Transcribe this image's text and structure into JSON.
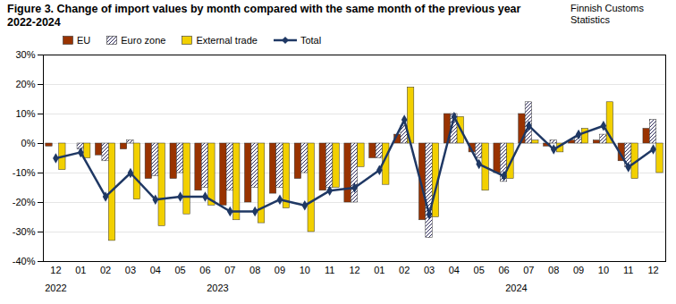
{
  "chart_data": {
    "type": "bar",
    "title": "Figure 3. Change of import values by month compared with the same month of the previous year 2022-2024",
    "source": "Finnish Customs Statistics",
    "categories": [
      "12",
      "01",
      "02",
      "03",
      "04",
      "05",
      "06",
      "07",
      "08",
      "09",
      "10",
      "11",
      "12",
      "01",
      "02",
      "03",
      "04",
      "05",
      "06",
      "07",
      "08",
      "09",
      "10",
      "11",
      "12"
    ],
    "category_groups": [
      "2022",
      "2023",
      "2023",
      "2023",
      "2023",
      "2023",
      "2023",
      "2023",
      "2023",
      "2023",
      "2023",
      "2023",
      "2023",
      "2024",
      "2024",
      "2024",
      "2024",
      "2024",
      "2024",
      "2024",
      "2024",
      "2024",
      "2024",
      "2024",
      "2024"
    ],
    "series": [
      {
        "name": "EU",
        "type": "bar",
        "color": "#993300",
        "values": [
          -1,
          0,
          -4,
          -2,
          -12,
          -12,
          -16,
          -21,
          -20,
          -17,
          -12,
          -16,
          -20,
          -5,
          3,
          -26,
          10,
          -3,
          -10,
          10,
          -1,
          1,
          1,
          -6,
          5
        ]
      },
      {
        "name": "Euro zone",
        "type": "bar",
        "color": "#2e2b5c",
        "marker": "hatch",
        "values": [
          0,
          -2,
          -6,
          1,
          -11,
          -10,
          -15,
          -16,
          -15,
          -15,
          -10,
          -15,
          -20,
          -5,
          6,
          -32,
          10,
          -5,
          -13,
          14,
          1,
          2,
          3,
          -8,
          8
        ]
      },
      {
        "name": "External trade",
        "type": "bar",
        "color": "#f2d000",
        "values": [
          -9,
          -5,
          -33,
          -19,
          -28,
          -24,
          -21,
          -26,
          -27,
          -22,
          -30,
          -15,
          -8,
          -14,
          19,
          -25,
          9,
          -16,
          -12,
          1,
          -3,
          5,
          14,
          -12,
          -10
        ]
      },
      {
        "name": "Total",
        "type": "line",
        "color": "#1f3864",
        "marker": "diamond",
        "values": [
          -5,
          -3,
          -18,
          -10,
          -19,
          -18,
          -18,
          -23,
          -23,
          -19,
          -21,
          -16,
          -15,
          -9,
          8,
          -24,
          9,
          -7,
          -11,
          6,
          -2,
          3,
          6,
          -8,
          -2
        ]
      }
    ],
    "ylim": [
      -40,
      30
    ],
    "yticks": [
      {
        "value": -40,
        "label": "-40%"
      },
      {
        "value": -30,
        "label": "-30%"
      },
      {
        "value": -20,
        "label": "-20%"
      },
      {
        "value": -10,
        "label": "-10%"
      },
      {
        "value": 0,
        "label": "0%"
      },
      {
        "value": 10,
        "label": "10%"
      },
      {
        "value": 20,
        "label": "20%"
      },
      {
        "value": 30,
        "label": "30%"
      }
    ],
    "grid": true,
    "legend": "top-left"
  }
}
